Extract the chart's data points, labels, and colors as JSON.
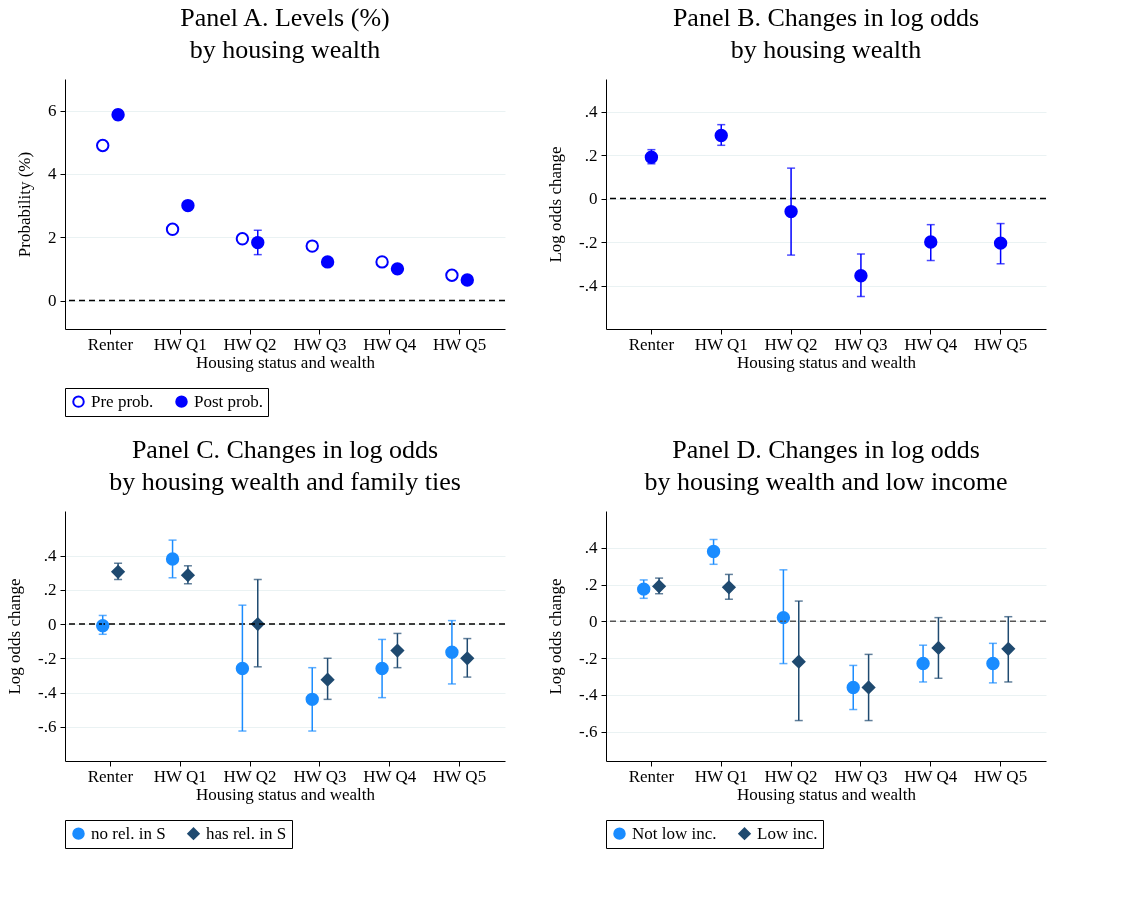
{
  "chart_data": [
    {
      "type": "scatter",
      "title": "Panel A. Levels (%)\nby housing wealth",
      "xlabel": "Housing status and wealth",
      "ylabel": "Probability (%)",
      "categories": [
        "Renter",
        "HW Q1",
        "HW Q2",
        "HW Q3",
        "HW Q4",
        "HW Q5"
      ],
      "series": [
        {
          "name": "Pre prob.",
          "color": "#0000ff",
          "marker": "circle_open",
          "values": [
            4.9,
            2.25,
            1.95,
            1.72,
            1.22,
            0.8
          ]
        },
        {
          "name": "Post prob.",
          "color": "#0000ff",
          "marker": "circle",
          "values": [
            5.87,
            3.0,
            1.83,
            1.22,
            1.0,
            0.65
          ],
          "errors": [
            [
              5.72,
              6.02
            ],
            null,
            [
              1.45,
              2.22
            ],
            [
              1.13,
              1.33
            ],
            null,
            null
          ]
        }
      ],
      "ylim": [
        -0.9,
        7
      ],
      "yticks": [
        0,
        2,
        4,
        6
      ],
      "grid": "y",
      "legend": "bottom",
      "ref_lines": [
        {
          "axis": "y",
          "value": 0,
          "color": "#000000",
          "line_style": "dashed"
        }
      ]
    },
    {
      "type": "scatter",
      "title": "Panel B. Changes in log odds\nby housing wealth",
      "xlabel": "Housing status and wealth",
      "ylabel": "Log odds change",
      "categories": [
        "Renter",
        "HW Q1",
        "HW Q2",
        "HW Q3",
        "HW Q4",
        "HW Q5"
      ],
      "series": [
        {
          "color": "#0000ff",
          "marker": "circle",
          "values": [
            0.19,
            0.29,
            -0.06,
            -0.355,
            -0.2,
            -0.205
          ],
          "errors": [
            [
              0.16,
              0.225
            ],
            [
              0.245,
              0.34
            ],
            [
              -0.26,
              0.14
            ],
            [
              -0.45,
              -0.255
            ],
            [
              -0.285,
              -0.12
            ],
            [
              -0.3,
              -0.115
            ]
          ]
        }
      ],
      "ylim": [
        -0.6,
        0.55
      ],
      "yticks": [
        {
          "value": -0.4,
          "label": "-.4"
        },
        {
          "value": -0.2,
          "label": "-.2"
        },
        0,
        {
          "value": 0.2,
          "label": ".2"
        },
        {
          "value": 0.4,
          "label": ".4"
        }
      ],
      "grid": "y",
      "ref_lines": [
        {
          "axis": "y",
          "value": 0,
          "color": "#000000",
          "line_style": "dashed"
        }
      ]
    },
    {
      "type": "scatter",
      "title": "Panel C. Changes in log odds\nby housing wealth and family ties",
      "xlabel": "Housing status and wealth",
      "ylabel": "Log odds change",
      "categories": [
        "Renter",
        "HW Q1",
        "HW Q2",
        "HW Q3",
        "HW Q4",
        "HW Q5"
      ],
      "series": [
        {
          "name": "no rel. in S",
          "color": "#1a8cff",
          "marker": "circle",
          "values": [
            -0.01,
            0.38,
            -0.26,
            -0.44,
            -0.26,
            -0.165
          ],
          "errors": [
            [
              -0.06,
              0.05
            ],
            [
              0.27,
              0.49
            ],
            [
              -0.625,
              0.11
            ],
            [
              -0.625,
              -0.255
            ],
            [
              -0.43,
              -0.09
            ],
            [
              -0.35,
              0.02
            ]
          ]
        },
        {
          "name": "has rel. in S",
          "color": "#1f4a70",
          "marker": "diamond",
          "values": [
            0.305,
            0.285,
            0.0,
            -0.325,
            -0.155,
            -0.2
          ],
          "errors": [
            [
              0.26,
              0.355
            ],
            [
              0.235,
              0.34
            ],
            [
              -0.25,
              0.26
            ],
            [
              -0.44,
              -0.2
            ],
            [
              -0.255,
              -0.055
            ],
            [
              -0.31,
              -0.085
            ]
          ]
        }
      ],
      "ylim": [
        -0.8,
        0.66
      ],
      "yticks": [
        {
          "value": -0.6,
          "label": "-.6"
        },
        {
          "value": -0.4,
          "label": "-.4"
        },
        {
          "value": -0.2,
          "label": "-.2"
        },
        0,
        {
          "value": 0.2,
          "label": ".2"
        },
        {
          "value": 0.4,
          "label": ".4"
        }
      ],
      "grid": "y",
      "legend": "bottom",
      "ref_lines": [
        {
          "axis": "y",
          "value": 0,
          "color": "#000000",
          "line_style": "dashed"
        }
      ]
    },
    {
      "type": "scatter",
      "title": "Panel D. Changes in log odds\nby housing wealth and low income",
      "xlabel": "Housing status and wealth",
      "ylabel": "Log odds change",
      "categories": [
        "Renter",
        "HW Q1",
        "HW Q2",
        "HW Q3",
        "HW Q4",
        "HW Q5"
      ],
      "series": [
        {
          "name": "Not low inc.",
          "color": "#1a8cff",
          "marker": "circle",
          "values": [
            0.175,
            0.38,
            0.02,
            -0.36,
            -0.23,
            -0.23
          ],
          "errors": [
            [
              0.125,
              0.225
            ],
            [
              0.31,
              0.445
            ],
            [
              -0.23,
              0.28
            ],
            [
              -0.48,
              -0.24
            ],
            [
              -0.33,
              -0.13
            ],
            [
              -0.335,
              -0.12
            ]
          ]
        },
        {
          "name": "Low inc.",
          "color": "#1f4a70",
          "marker": "diamond",
          "values": [
            0.19,
            0.185,
            -0.22,
            -0.36,
            -0.145,
            -0.15
          ],
          "errors": [
            [
              0.15,
              0.235
            ],
            [
              0.12,
              0.255
            ],
            [
              -0.54,
              0.11
            ],
            [
              -0.54,
              -0.18
            ],
            [
              -0.31,
              0.02
            ],
            [
              -0.33,
              0.025
            ]
          ]
        }
      ],
      "ylim": [
        -0.76,
        0.6
      ],
      "yticks": [
        {
          "value": -0.6,
          "label": "-.6"
        },
        {
          "value": -0.4,
          "label": "-.4"
        },
        {
          "value": -0.2,
          "label": "-.2"
        },
        0,
        {
          "value": 0.2,
          "label": ".2"
        },
        {
          "value": 0.4,
          "label": ".4"
        }
      ],
      "grid": "y",
      "legend": "bottom",
      "ref_lines": [
        {
          "axis": "y",
          "value": 0,
          "color": "#555555",
          "line_style": "dashed"
        }
      ]
    }
  ]
}
